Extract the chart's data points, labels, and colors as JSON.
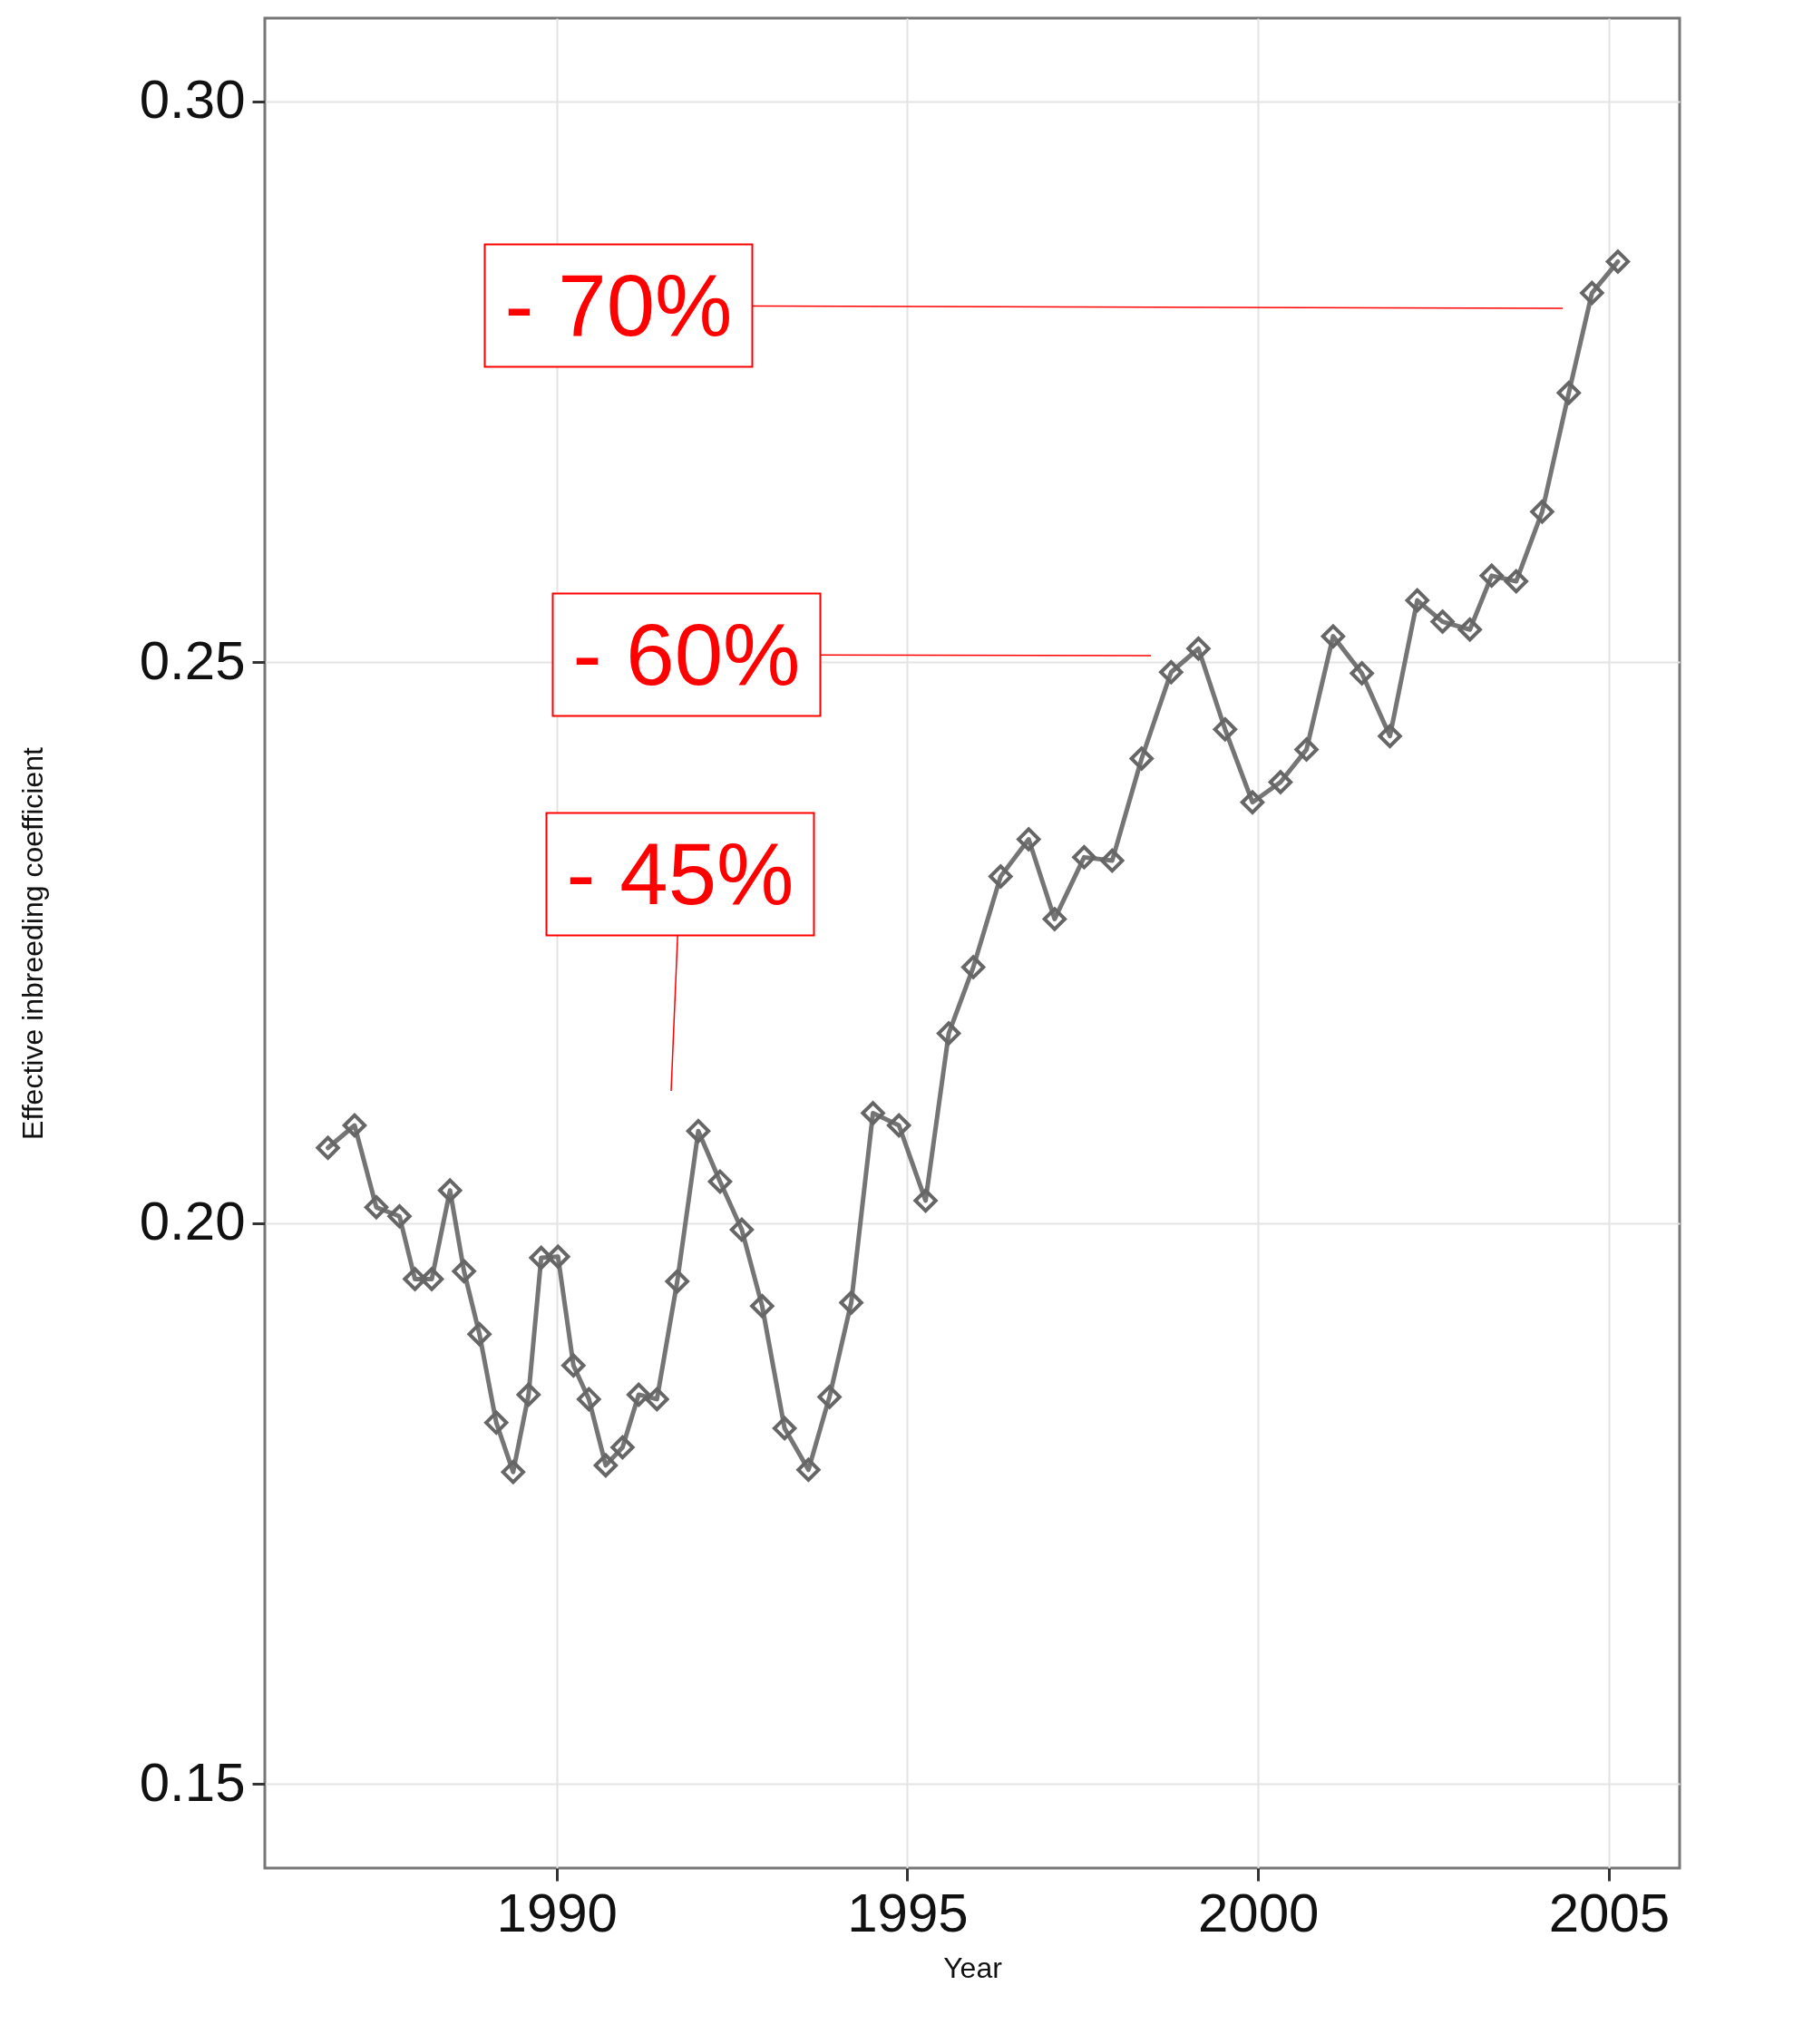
{
  "chart_data": {
    "type": "line",
    "xlabel": "Year",
    "ylabel": "Effective inbreeding coefficient",
    "x": [
      1986.74,
      1987.12,
      1987.43,
      1987.76,
      1987.98,
      1988.22,
      1988.48,
      1988.68,
      1988.9,
      1989.14,
      1989.38,
      1989.6,
      1989.78,
      1990.02,
      1990.24,
      1990.46,
      1990.7,
      1990.94,
      1991.17,
      1991.43,
      1991.72,
      1992.02,
      1992.33,
      1992.64,
      1992.93,
      1993.25,
      1993.59,
      1993.89,
      1994.2,
      1994.51,
      1994.88,
      1995.26,
      1995.59,
      1995.94,
      1996.33,
      1996.73,
      1997.1,
      1997.52,
      1997.92,
      1998.34,
      1998.76,
      1999.15,
      1999.53,
      1999.92,
      2000.32,
      2000.69,
      2001.07,
      2001.48,
      2001.88,
      2002.27,
      2002.63,
      2003.02,
      2003.33,
      2003.68,
      2004.05,
      2004.43,
      2004.76,
      2005.13
    ],
    "series": [
      {
        "color": "#666666",
        "values": [
          0.2067,
          0.2087,
          0.2014,
          0.2006,
          0.195,
          0.195,
          0.2029,
          0.1957,
          0.1901,
          0.1822,
          0.1778,
          0.1847,
          0.1969,
          0.197,
          0.1873,
          0.1843,
          0.1784,
          0.18,
          0.1847,
          0.1843,
          0.1948,
          0.2082,
          0.2037,
          0.1994,
          0.1926,
          0.1817,
          0.178,
          0.1845,
          0.1929,
          0.2098,
          0.2087,
          0.202,
          0.2169,
          0.2228,
          0.2309,
          0.2342,
          0.2271,
          0.2326,
          0.2323,
          0.2414,
          0.2491,
          0.2512,
          0.244,
          0.2375,
          0.2393,
          0.2422,
          0.2523,
          0.249,
          0.2434,
          0.2555,
          0.2536,
          0.2529,
          0.2577,
          0.2572,
          0.2634,
          0.274,
          0.2829,
          0.2857
        ]
      }
    ],
    "xlim": [
      1985.84,
      2006.01
    ],
    "xticks": [
      1990,
      1995,
      2000,
      2005
    ],
    "ylim": [
      0.1425,
      0.3074
    ],
    "yticks": [
      {
        "value": 0.15,
        "label": "0.15"
      },
      {
        "value": 0.2,
        "label": "0.20"
      },
      {
        "value": 0.25,
        "label": "0.25"
      },
      {
        "value": 0.3,
        "label": "0.30"
      }
    ],
    "grid": true,
    "marker": "diamond",
    "line_style": "solid",
    "annotations": [
      "- 70%",
      "- 60%",
      "- 45%"
    ]
  }
}
